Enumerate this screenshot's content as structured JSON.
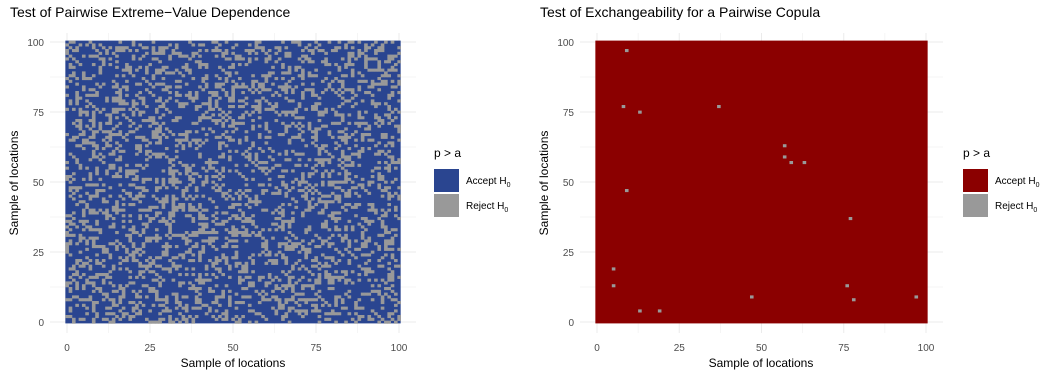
{
  "colors": {
    "accept_left": "#2a4590",
    "accept_right": "#8b0000",
    "reject": "#999999",
    "grid": "#ebebeb"
  },
  "chart_data": [
    {
      "type": "heatmap",
      "title": "Test of Pairwise Extreme−Value Dependence",
      "xlabel": "Sample of locations",
      "ylabel": "Sample of locations",
      "xlim": [
        0,
        100
      ],
      "ylim": [
        0,
        100
      ],
      "xticks": [
        "0",
        "25",
        "50",
        "75",
        "100"
      ],
      "yticks": [
        "0",
        "25",
        "50",
        "75",
        "100"
      ],
      "grid": true,
      "legend": {
        "title": "p > a",
        "placement": "right",
        "entries": [
          {
            "label": "Accept H",
            "sub": "0",
            "color": "#2a4590"
          },
          {
            "label": "Reject H",
            "sub": "0",
            "color": "#999999"
          }
        ]
      },
      "background_value": "Accept H0",
      "reject_fraction": 0.28,
      "reject_cells": []
    },
    {
      "type": "heatmap",
      "title": "Test of Exchangeability for a Pairwise Copula",
      "xlabel": "Sample of locations",
      "ylabel": "Sample of locations",
      "xlim": [
        0,
        100
      ],
      "ylim": [
        0,
        100
      ],
      "xticks": [
        "0",
        "25",
        "50",
        "75",
        "100"
      ],
      "yticks": [
        "0",
        "25",
        "50",
        "75",
        "100"
      ],
      "grid": true,
      "legend": {
        "title": "p > a",
        "placement": "right",
        "entries": [
          {
            "label": "Accept H",
            "sub": "0",
            "color": "#8b0000"
          },
          {
            "label": "Reject H",
            "sub": "0",
            "color": "#999999"
          }
        ]
      },
      "background_value": "Accept H0",
      "reject_fraction": 0,
      "reject_cells": [
        [
          9,
          97
        ],
        [
          8,
          77
        ],
        [
          37,
          77
        ],
        [
          13,
          75
        ],
        [
          57,
          63
        ],
        [
          57,
          59
        ],
        [
          59,
          57
        ],
        [
          63,
          57
        ],
        [
          9,
          47
        ],
        [
          77,
          37
        ],
        [
          5,
          19
        ],
        [
          5,
          13
        ],
        [
          76,
          13
        ],
        [
          47,
          9
        ],
        [
          78,
          8
        ],
        [
          97,
          9
        ],
        [
          13,
          4
        ],
        [
          19,
          4
        ]
      ]
    }
  ]
}
